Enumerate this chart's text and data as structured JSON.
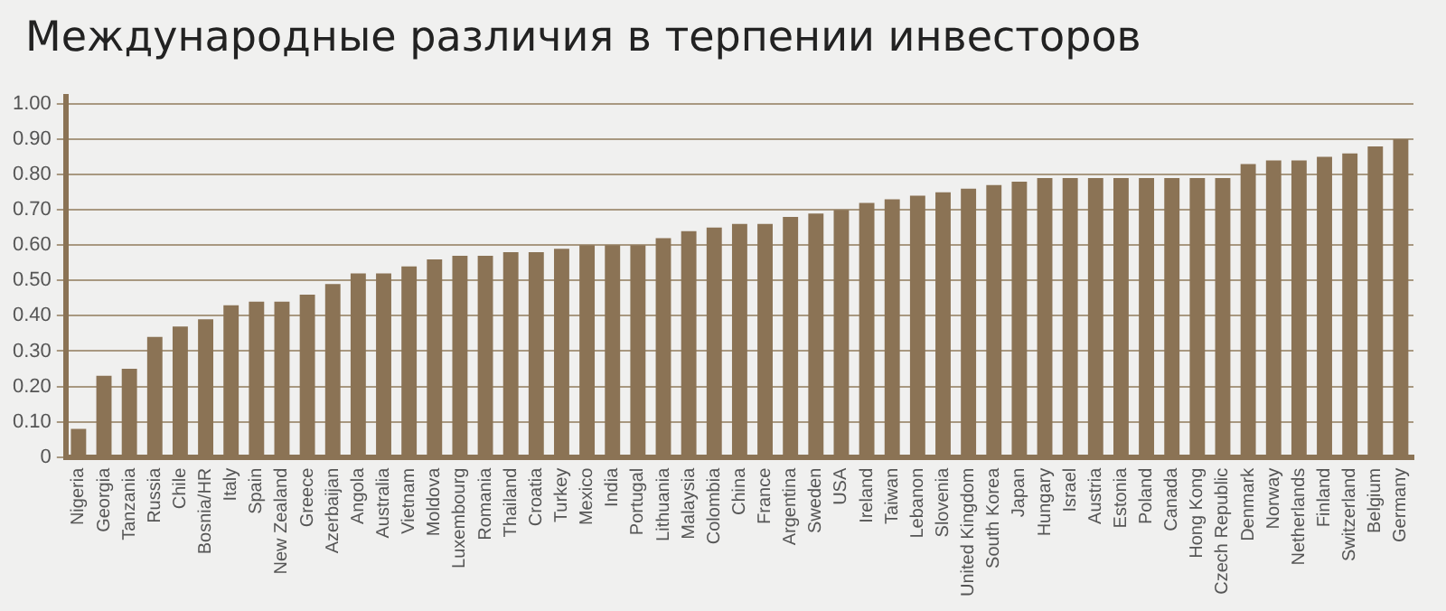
{
  "chart_data": {
    "type": "bar",
    "title": "Международные различия в терпении инвесторов",
    "categories": [
      "Nigeria",
      "Georgia",
      "Tanzania",
      "Russia",
      "Chile",
      "Bosnia/HR",
      "Italy",
      "Spain",
      "New Zealand",
      "Greece",
      "Azerbaijan",
      "Angola",
      "Australia",
      "Vietnam",
      "Moldova",
      "Luxembourg",
      "Romania",
      "Thailand",
      "Croatia",
      "Turkey",
      "Mexico",
      "India",
      "Portugal",
      "Lithuania",
      "Malaysia",
      "Colombia",
      "China",
      "France",
      "Argentina",
      "Sweden",
      "USA",
      "Ireland",
      "Taiwan",
      "Lebanon",
      "Slovenia",
      "United Kingdom",
      "South Korea",
      "Japan",
      "Hungary",
      "Israel",
      "Austria",
      "Estonia",
      "Poland",
      "Canada",
      "Hong Kong",
      "Czech Republic",
      "Denmark",
      "Norway",
      "Netherlands",
      "Finland",
      "Switzerland",
      "Belgium",
      "Germany"
    ],
    "values": [
      0.08,
      0.23,
      0.25,
      0.34,
      0.37,
      0.39,
      0.43,
      0.44,
      0.44,
      0.46,
      0.49,
      0.52,
      0.52,
      0.54,
      0.56,
      0.57,
      0.57,
      0.58,
      0.58,
      0.59,
      0.6,
      0.6,
      0.6,
      0.62,
      0.64,
      0.65,
      0.66,
      0.66,
      0.68,
      0.69,
      0.7,
      0.72,
      0.73,
      0.74,
      0.75,
      0.76,
      0.77,
      0.78,
      0.79,
      0.79,
      0.79,
      0.79,
      0.79,
      0.79,
      0.79,
      0.79,
      0.83,
      0.84,
      0.84,
      0.85,
      0.86,
      0.88,
      0.9
    ],
    "color": "#8b7355",
    "ylim": [
      0,
      1.02
    ],
    "yticks": [
      {
        "value": 0,
        "label": "0"
      },
      {
        "value": 0.1,
        "label": "0.10"
      },
      {
        "value": 0.2,
        "label": "0.20"
      },
      {
        "value": 0.3,
        "label": "0.30"
      },
      {
        "value": 0.4,
        "label": "0.40"
      },
      {
        "value": 0.5,
        "label": "0.50"
      },
      {
        "value": 0.6,
        "label": "0.60"
      },
      {
        "value": 0.7,
        "label": "0.70"
      },
      {
        "value": 0.8,
        "label": "0.80"
      },
      {
        "value": 0.9,
        "label": "0.90"
      },
      {
        "value": 1,
        "label": "1.00"
      }
    ],
    "grid": "y",
    "legend": false
  }
}
